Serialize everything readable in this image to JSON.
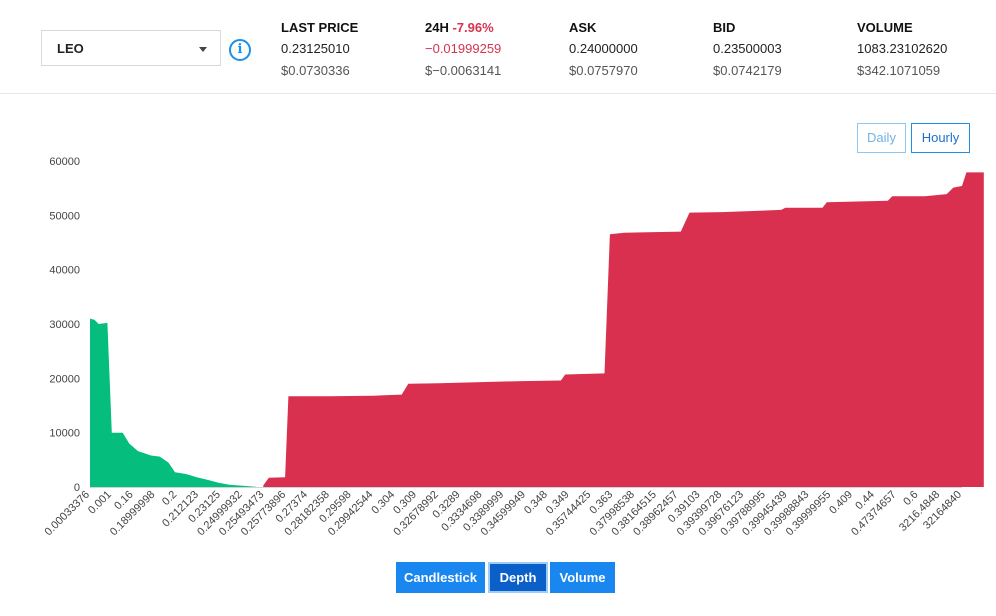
{
  "pair": {
    "selected": "LEO"
  },
  "stats": [
    {
      "label": "LAST PRICE",
      "label_change": "",
      "value": "0.23125010",
      "usd": "$0.0730336"
    },
    {
      "label": "24H ",
      "label_change": "-7.96%",
      "value": "−0.01999259",
      "usd": "$−0.0063141"
    },
    {
      "label": "ASK",
      "label_change": "",
      "value": "0.24000000",
      "usd": "$0.0757970"
    },
    {
      "label": "BID",
      "label_change": "",
      "value": "0.23500003",
      "usd": "$0.0742179"
    },
    {
      "label": "VOLUME",
      "label_change": "",
      "value": "1083.23102620",
      "usd": "$342.1071059"
    }
  ],
  "range_buttons": {
    "daily": "Daily",
    "hourly": "Hourly"
  },
  "view_tabs": {
    "candlestick": "Candlestick",
    "depth": "Depth",
    "volume": "Volume"
  },
  "colors": {
    "bid": "#05be7e",
    "ask": "#d9304f",
    "accent": "#1a86f0",
    "negative": "#d6334f"
  },
  "chart_data": {
    "type": "area",
    "ylim": [
      0,
      60000
    ],
    "yticks": [
      0,
      10000,
      20000,
      30000,
      40000,
      50000,
      60000
    ],
    "x_ticks": [
      "0.00033376",
      "0.001",
      "0.16",
      "0.18999998",
      "0.2",
      "0.212123",
      "0.23125",
      "0.24999932",
      "0.25493473",
      "0.25773896",
      "0.27374",
      "0.28182358",
      "0.29598",
      "0.29942544",
      "0.304",
      "0.309",
      "0.32678992",
      "0.3289",
      "0.3334698",
      "0.3389999",
      "0.34599949",
      "0.348",
      "0.349",
      "0.35744425",
      "0.363",
      "0.37998538",
      "0.38164515",
      "0.38962457",
      "0.39103",
      "0.39399728",
      "0.39676123",
      "0.39788995",
      "0.39945439",
      "0.39988843",
      "0.39999955",
      "0.409",
      "0.44",
      "0.47374657",
      "0.6",
      "3216.4848",
      "32164840"
    ],
    "series": [
      {
        "side": "bid",
        "points": [
          [
            0,
            31000
          ],
          [
            0.2,
            30800
          ],
          [
            0.4,
            30000
          ],
          [
            0.8,
            30200
          ],
          [
            1.0,
            10000
          ],
          [
            1.5,
            10000
          ],
          [
            1.8,
            8000
          ],
          [
            2.2,
            6600
          ],
          [
            2.8,
            5800
          ],
          [
            3.2,
            5600
          ],
          [
            3.6,
            4500
          ],
          [
            3.9,
            2700
          ],
          [
            4.4,
            2400
          ],
          [
            4.9,
            1800
          ],
          [
            5.4,
            1300
          ],
          [
            5.9,
            800
          ],
          [
            6.4,
            400
          ],
          [
            7.3,
            150
          ],
          [
            7.6,
            30
          ]
        ]
      },
      {
        "side": "ask",
        "points": [
          [
            7.95,
            300
          ],
          [
            8.2,
            1700
          ],
          [
            8.95,
            1800
          ],
          [
            9.1,
            16700
          ],
          [
            11.0,
            16700
          ],
          [
            13.0,
            16800
          ],
          [
            14.3,
            17000
          ],
          [
            14.6,
            19000
          ],
          [
            16.0,
            19100
          ],
          [
            19.8,
            19500
          ],
          [
            21.6,
            19600
          ],
          [
            21.8,
            20700
          ],
          [
            23.6,
            20900
          ],
          [
            23.85,
            46500
          ],
          [
            24.5,
            46800
          ],
          [
            27.1,
            47000
          ],
          [
            27.5,
            50500
          ],
          [
            29.0,
            50600
          ],
          [
            31.7,
            51000
          ],
          [
            31.9,
            51400
          ],
          [
            33.6,
            51400
          ],
          [
            33.8,
            52400
          ],
          [
            36.6,
            52700
          ],
          [
            36.8,
            53500
          ],
          [
            38.3,
            53500
          ],
          [
            39.3,
            53900
          ],
          [
            39.6,
            55100
          ],
          [
            40.0,
            55400
          ],
          [
            40.2,
            57900
          ],
          [
            41.0,
            57900
          ]
        ]
      }
    ]
  }
}
